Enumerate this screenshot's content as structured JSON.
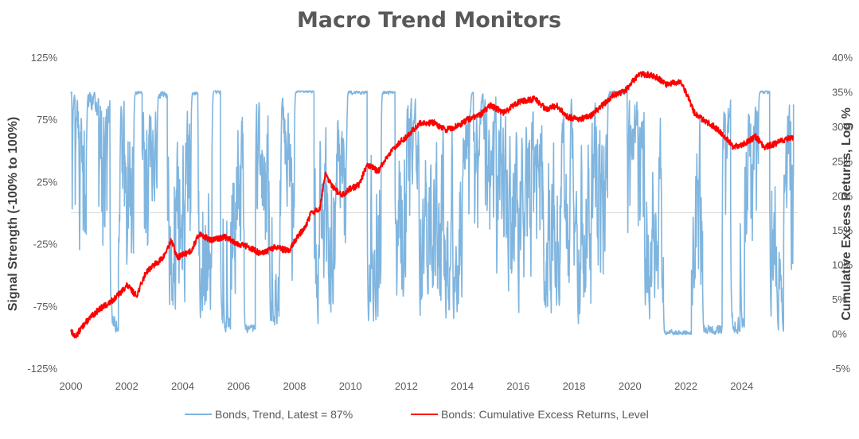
{
  "chart_data": {
    "type": "line",
    "title": "Macro Trend Monitors",
    "ylabel_left": "Signal Strength (-100% to 100%)",
    "ylabel_right": "Cumulative Excess Returns, Log %",
    "xlim": [
      2000,
      2026
    ],
    "ylim_left": [
      -125,
      125
    ],
    "ylim_right": [
      -5,
      40
    ],
    "x_ticks": [
      "2000",
      "2002",
      "2004",
      "2006",
      "2008",
      "2010",
      "2012",
      "2014",
      "2016",
      "2018",
      "2020",
      "2022",
      "2024"
    ],
    "y_left_ticks": [
      "125%",
      "75%",
      "25%",
      "-25%",
      "-75%",
      "-125%"
    ],
    "y_right_ticks": [
      "40%",
      "35%",
      "30%",
      "25%",
      "20%",
      "15%",
      "10%",
      "5%",
      "0%",
      "-5%"
    ],
    "grid": false,
    "legend_position": "bottom",
    "series": [
      {
        "name": "Bonds,  Trend, Latest = 87%",
        "color": "#7fb5df",
        "axis": "left",
        "seed": 7,
        "bands": [
          [
            2000.0,
            2000.25,
            0.95,
            0.55
          ],
          [
            2000.25,
            2000.55,
            0.15,
            1.4
          ],
          [
            2000.55,
            2001.0,
            0.95,
            0.5
          ],
          [
            2001.0,
            2001.4,
            0.5,
            1.3
          ],
          [
            2001.4,
            2001.7,
            -0.85,
            0.4
          ],
          [
            2001.7,
            2002.25,
            0.3,
            1.4
          ],
          [
            2002.25,
            2002.55,
            0.97,
            0.05
          ],
          [
            2002.55,
            2003.1,
            0.4,
            1.3
          ],
          [
            2003.1,
            2003.45,
            0.95,
            0.1
          ],
          [
            2003.45,
            2003.75,
            -0.2,
            1.5
          ],
          [
            2003.75,
            2004.3,
            0.2,
            1.5
          ],
          [
            2004.3,
            2004.55,
            0.96,
            0.05
          ],
          [
            2004.55,
            2005.05,
            -0.3,
            1.5
          ],
          [
            2005.05,
            2005.35,
            0.97,
            0.06
          ],
          [
            2005.35,
            2005.75,
            -0.9,
            0.3
          ],
          [
            2005.75,
            2006.2,
            0.1,
            1.5
          ],
          [
            2006.2,
            2006.6,
            -0.93,
            0.1
          ],
          [
            2006.6,
            2007.05,
            0.2,
            1.5
          ],
          [
            2007.05,
            2007.45,
            -0.6,
            1.0
          ],
          [
            2007.45,
            2008.0,
            0.25,
            1.5
          ],
          [
            2008.0,
            2008.7,
            0.98,
            0.04
          ],
          [
            2008.7,
            2009.4,
            -0.2,
            1.5
          ],
          [
            2009.4,
            2009.9,
            0.3,
            1.4
          ],
          [
            2009.9,
            2010.6,
            0.97,
            0.05
          ],
          [
            2010.6,
            2011.1,
            -0.6,
            1.1
          ],
          [
            2011.1,
            2011.6,
            0.97,
            0.05
          ],
          [
            2011.6,
            2012.0,
            -0.2,
            1.5
          ],
          [
            2012.0,
            2012.4,
            0.5,
            1.1
          ],
          [
            2012.4,
            2013.3,
            -0.1,
            1.6
          ],
          [
            2013.3,
            2014.0,
            -0.3,
            1.5
          ],
          [
            2014.0,
            2015.2,
            0.55,
            1.0
          ],
          [
            2015.2,
            2016.0,
            0.1,
            1.5
          ],
          [
            2016.0,
            2016.8,
            0.2,
            1.5
          ],
          [
            2016.8,
            2017.5,
            -0.1,
            1.5
          ],
          [
            2017.5,
            2018.0,
            0.3,
            1.4
          ],
          [
            2018.0,
            2018.6,
            -0.2,
            1.5
          ],
          [
            2018.6,
            2019.2,
            0.3,
            1.4
          ],
          [
            2019.2,
            2019.9,
            0.97,
            0.08
          ],
          [
            2019.9,
            2020.5,
            0.6,
            1.0
          ],
          [
            2020.5,
            2021.2,
            -0.3,
            1.5
          ],
          [
            2021.2,
            2022.2,
            -0.97,
            0.08
          ],
          [
            2022.2,
            2022.6,
            0.0,
            1.6
          ],
          [
            2022.6,
            2023.3,
            -0.95,
            0.15
          ],
          [
            2023.3,
            2023.6,
            0.7,
            0.8
          ],
          [
            2023.6,
            2024.1,
            -0.9,
            0.3
          ],
          [
            2024.1,
            2024.6,
            0.5,
            1.2
          ],
          [
            2024.6,
            2025.0,
            0.97,
            0.05
          ],
          [
            2025.0,
            2025.5,
            -0.3,
            1.5
          ],
          [
            2025.5,
            2025.85,
            0.3,
            1.4
          ]
        ],
        "latest": 87
      },
      {
        "name": "Bonds: Cumulative Excess Returns, Level",
        "color": "#ff0000",
        "axis": "right",
        "seed": 13,
        "anchors": [
          [
            2000.0,
            0.5
          ],
          [
            2000.15,
            -0.5
          ],
          [
            2000.5,
            1.5
          ],
          [
            2001.0,
            3.5
          ],
          [
            2001.4,
            4.5
          ],
          [
            2001.8,
            6.0
          ],
          [
            2002.0,
            7.0
          ],
          [
            2002.35,
            5.5
          ],
          [
            2002.7,
            9.0
          ],
          [
            2003.3,
            11.0
          ],
          [
            2003.6,
            13.5
          ],
          [
            2003.8,
            11.0
          ],
          [
            2004.3,
            12.0
          ],
          [
            2004.6,
            14.5
          ],
          [
            2005.0,
            13.5
          ],
          [
            2005.5,
            14.0
          ],
          [
            2006.0,
            13.0
          ],
          [
            2006.4,
            12.5
          ],
          [
            2006.8,
            11.5
          ],
          [
            2007.3,
            12.5
          ],
          [
            2007.8,
            12.0
          ],
          [
            2008.1,
            14.0
          ],
          [
            2008.4,
            15.5
          ],
          [
            2008.6,
            17.5
          ],
          [
            2008.9,
            18.0
          ],
          [
            2009.1,
            23.0
          ],
          [
            2009.4,
            21.0
          ],
          [
            2009.7,
            20.0
          ],
          [
            2010.0,
            21.0
          ],
          [
            2010.3,
            21.5
          ],
          [
            2010.6,
            24.5
          ],
          [
            2011.0,
            23.5
          ],
          [
            2011.3,
            25.5
          ],
          [
            2011.7,
            27.5
          ],
          [
            2012.0,
            28.5
          ],
          [
            2012.5,
            30.5
          ],
          [
            2013.0,
            30.5
          ],
          [
            2013.4,
            29.5
          ],
          [
            2013.8,
            30.0
          ],
          [
            2014.2,
            31.0
          ],
          [
            2014.6,
            31.5
          ],
          [
            2015.0,
            33.0
          ],
          [
            2015.5,
            32.0
          ],
          [
            2016.0,
            33.5
          ],
          [
            2016.6,
            34.0
          ],
          [
            2017.0,
            32.5
          ],
          [
            2017.4,
            33.0
          ],
          [
            2017.7,
            31.5
          ],
          [
            2018.1,
            31.0
          ],
          [
            2018.6,
            31.5
          ],
          [
            2019.0,
            33.0
          ],
          [
            2019.4,
            34.5
          ],
          [
            2019.8,
            35.0
          ],
          [
            2020.1,
            36.5
          ],
          [
            2020.3,
            37.5
          ],
          [
            2020.7,
            37.5
          ],
          [
            2021.0,
            37.0
          ],
          [
            2021.3,
            36.0
          ],
          [
            2021.8,
            36.5
          ],
          [
            2022.0,
            35.0
          ],
          [
            2022.3,
            32.0
          ],
          [
            2022.6,
            31.0
          ],
          [
            2023.0,
            30.0
          ],
          [
            2023.4,
            28.5
          ],
          [
            2023.7,
            27.0
          ],
          [
            2024.1,
            27.5
          ],
          [
            2024.5,
            28.5
          ],
          [
            2024.8,
            27.0
          ],
          [
            2025.2,
            27.5
          ],
          [
            2025.5,
            28.0
          ],
          [
            2025.85,
            28.5
          ]
        ]
      }
    ]
  }
}
